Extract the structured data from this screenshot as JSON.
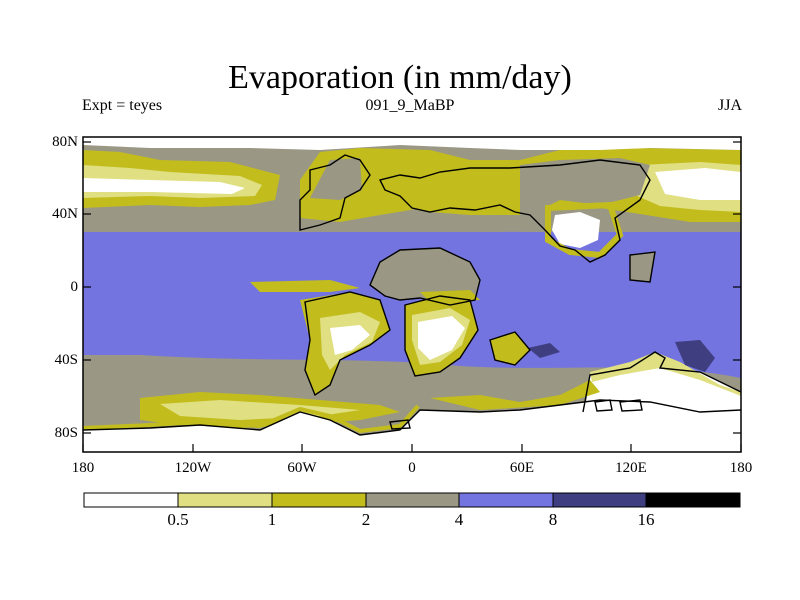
{
  "title": "Evaporation (in mm/day)",
  "subtitle_left": "Expt = teyes",
  "subtitle_center": "091_9_MaBP",
  "subtitle_right": "JJA",
  "y_axis": {
    "ticks": [
      {
        "label": "80N",
        "lat": 80
      },
      {
        "label": "40N",
        "lat": 40
      },
      {
        "label": "0",
        "lat": 0
      },
      {
        "label": "40S",
        "lat": -40
      },
      {
        "label": "80S",
        "lat": -80
      }
    ]
  },
  "x_axis": {
    "ticks": [
      {
        "label": "180",
        "lon": -180
      },
      {
        "label": "120W",
        "lon": -120
      },
      {
        "label": "60W",
        "lon": -60
      },
      {
        "label": "0",
        "lon": 0
      },
      {
        "label": "60E",
        "lon": 60
      },
      {
        "label": "120E",
        "lon": 120
      },
      {
        "label": "180",
        "lon": 180
      }
    ]
  },
  "colorbar": {
    "levels": [
      "0.5",
      "1",
      "2",
      "4",
      "8",
      "16"
    ],
    "colors": [
      "#ffffff",
      "#e0df82",
      "#c2bd1c",
      "#9a9784",
      "#7474e0",
      "#3e3e80",
      "#000000"
    ]
  },
  "map_colors": {
    "ocean_tropics": "#7474e0",
    "ocean_extra": "#9a9784",
    "yellow": "#c2bd1c",
    "light_yellow": "#e0df82",
    "white": "#ffffff",
    "dark_blue": "#3e3e80",
    "coast": "#000000"
  }
}
